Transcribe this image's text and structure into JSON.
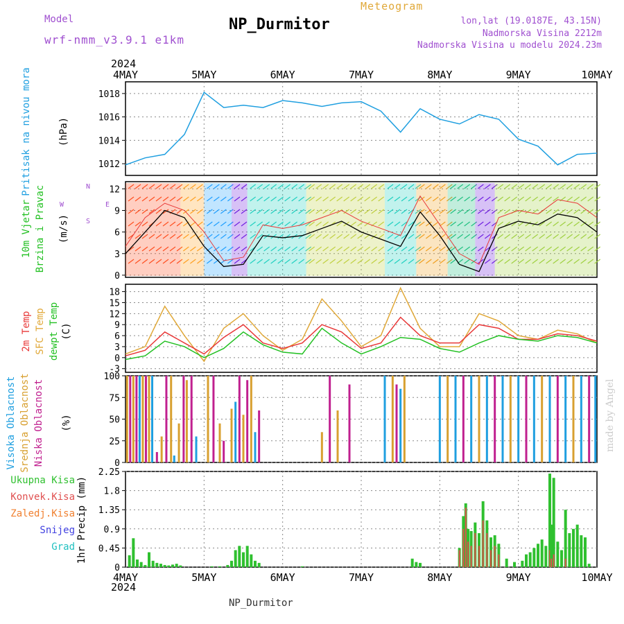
{
  "header": {
    "model_label": "Model",
    "model_name": "wrf-nmm_v3.9.1 e1km",
    "title": "NP_Durmitor",
    "product": "Meteogram",
    "location": "lon,lat (19.0187E, 43.15N)",
    "elevation": "Nadmorska Visina 2212m",
    "model_elevation": "Nadmorska Visina u modelu 2024.23m",
    "footer": "NP_Durmitor",
    "credit": "made by Angel",
    "year": "2024"
  },
  "colors": {
    "pressure": "#1f9fe0",
    "speed": "#000000",
    "gust": "#e83838",
    "temp2m": "#e83838",
    "sfc": "#e0a838",
    "dewpt": "#22c022",
    "cloud_high": "#1f9fe0",
    "cloud_mid": "#d8a030",
    "cloud_low": "#c0208f",
    "rain_total": "#2fc02f",
    "rain_conv": "#e05050",
    "rain_frozen": "#f08030",
    "snow": "#4040e0",
    "graupel": "#20c0c0",
    "grid": "#888888",
    "label_purple": "#a050d0",
    "label_gold": "#e0a838"
  },
  "chart_data": [
    {
      "type": "line",
      "id": "pressure",
      "ylabel": [
        "Pritisak na nivou mora",
        "(hPa)"
      ],
      "x_ticks": [
        "4MAY",
        "5MAY",
        "6MAY",
        "7MAY",
        "8MAY",
        "9MAY",
        "10MAY"
      ],
      "ylim": [
        1011,
        1019
      ],
      "yticks": [
        1012,
        1014,
        1016,
        1018
      ],
      "x": [
        0,
        0.25,
        0.5,
        0.75,
        1,
        1.25,
        1.5,
        1.75,
        2,
        2.25,
        2.5,
        2.75,
        3,
        3.25,
        3.5,
        3.75,
        4,
        4.25,
        4.5,
        4.75,
        5,
        5.25,
        5.5,
        5.75,
        6
      ],
      "values": [
        1011.9,
        1012.5,
        1012.8,
        1014.5,
        1018.1,
        1016.8,
        1017.0,
        1016.8,
        1017.4,
        1017.2,
        1016.9,
        1017.2,
        1017.3,
        1016.5,
        1014.7,
        1016.7,
        1015.8,
        1015.4,
        1016.2,
        1015.8,
        1014.1,
        1013.5,
        1011.9,
        1012.8,
        1012.9
      ]
    },
    {
      "type": "line",
      "id": "wind",
      "ylabel": [
        "10m Vjetar",
        "Brzina i Pravac",
        "(m/s)"
      ],
      "compass": [
        "N",
        "W",
        "E",
        "S"
      ],
      "ylim": [
        -0.3,
        13
      ],
      "yticks": [
        0,
        3,
        6,
        9,
        12
      ],
      "x": [
        0,
        0.25,
        0.5,
        0.75,
        1,
        1.25,
        1.5,
        1.75,
        2,
        2.25,
        2.5,
        2.75,
        3,
        3.25,
        3.5,
        3.75,
        4,
        4.25,
        4.5,
        4.75,
        5,
        5.25,
        5.5,
        5.75,
        6
      ],
      "series": [
        {
          "values": [
            3,
            6,
            9,
            8,
            4,
            1.2,
            1.5,
            5.5,
            5.2,
            5.5,
            6.5,
            7.5,
            6,
            5,
            4,
            8.8,
            5.5,
            1.5,
            0.5,
            6.5,
            7.5,
            7,
            8.5,
            8,
            6
          ]
        },
        {
          "values": [
            4,
            8,
            10,
            9,
            6,
            2,
            2.5,
            7,
            6.5,
            7,
            8,
            9,
            7.5,
            6.5,
            5.5,
            11,
            7,
            3,
            1.5,
            8,
            9,
            8.5,
            10.5,
            10,
            8
          ]
        }
      ],
      "barb_band": [
        [
          0,
          0.7,
          "#ff5020"
        ],
        [
          0.7,
          1,
          "#ffa020"
        ],
        [
          1,
          1.35,
          "#20a0ff"
        ],
        [
          1.35,
          1.55,
          "#7020e0"
        ],
        [
          1.55,
          2.3,
          "#20d0c0"
        ],
        [
          2.3,
          3.3,
          "#c0d040"
        ],
        [
          3.3,
          3.7,
          "#20d0c0"
        ],
        [
          3.7,
          4.1,
          "#f0a020"
        ],
        [
          4.1,
          4.45,
          "#20c080"
        ],
        [
          4.45,
          4.7,
          "#7020e0"
        ],
        [
          4.7,
          6,
          "#a0d040"
        ]
      ]
    },
    {
      "type": "line",
      "id": "temperature",
      "ylabel": [
        "2m Temp",
        "SFC Temp",
        "dewpt Temp",
        "(C)"
      ],
      "ylim": [
        -4,
        20
      ],
      "yticks": [
        -3,
        0,
        3,
        6,
        9,
        12,
        15,
        18
      ],
      "x": [
        0,
        0.25,
        0.5,
        0.75,
        1,
        1.25,
        1.5,
        1.75,
        2,
        2.25,
        2.5,
        2.75,
        3,
        3.25,
        3.5,
        3.75,
        4,
        4.25,
        4.5,
        4.75,
        5,
        5.25,
        5.5,
        5.75,
        6
      ],
      "series": [
        {
          "name": "2m Temp",
          "values": [
            0.5,
            2,
            7,
            4,
            1,
            5.5,
            9,
            4,
            2.5,
            4,
            9,
            7,
            2.5,
            4,
            11,
            6,
            4,
            4,
            9,
            8,
            5,
            5,
            6.5,
            6,
            4.5
          ]
        },
        {
          "name": "SFC Temp",
          "values": [
            1,
            3,
            14,
            6,
            -1,
            8,
            12,
            6,
            2,
            5,
            16,
            10,
            3,
            6,
            19,
            8,
            3,
            3,
            12,
            10,
            6,
            5,
            7.5,
            6.5,
            4
          ]
        },
        {
          "name": "dewpt Temp",
          "values": [
            -0.5,
            0.5,
            4.5,
            3,
            0,
            2.5,
            7,
            3.5,
            1.5,
            1,
            8,
            4,
            1,
            3,
            5.5,
            5,
            2.5,
            1.5,
            4,
            6,
            5,
            4.5,
            6,
            5.5,
            4
          ]
        }
      ]
    },
    {
      "type": "bar",
      "id": "cloud",
      "ylabel": [
        "Visoka Oblacnost",
        "Srednja Oblacnost",
        "Niska Oblacnost",
        "(%)"
      ],
      "ylim": [
        0,
        100
      ],
      "yticks": [
        0,
        25,
        50,
        75,
        100
      ],
      "x": [
        0.02,
        0.06,
        0.1,
        0.14,
        0.18,
        0.22,
        0.26,
        0.3,
        0.34,
        0.4,
        0.46,
        0.52,
        0.58,
        0.62,
        0.68,
        0.74,
        0.78,
        0.84,
        0.9,
        1.05,
        1.12,
        1.2,
        1.25,
        1.35,
        1.4,
        1.45,
        1.5,
        1.55,
        1.6,
        1.65,
        1.7,
        2.5,
        2.6,
        2.7,
        2.85,
        3.3,
        3.4,
        3.45,
        3.5,
        3.55,
        4.0,
        4.1,
        4.2,
        4.3,
        4.4,
        4.5,
        4.6,
        4.7,
        4.8,
        4.9,
        5.0,
        5.1,
        5.2,
        5.3,
        5.4,
        5.5,
        5.6,
        5.7,
        5.8,
        5.9,
        5.98
      ],
      "values": [
        100,
        100,
        100,
        100,
        100,
        100,
        100,
        100,
        100,
        12,
        30,
        100,
        100,
        8,
        45,
        100,
        95,
        100,
        30,
        100,
        100,
        45,
        25,
        62,
        70,
        100,
        55,
        95,
        100,
        35,
        60,
        35,
        100,
        60,
        90,
        100,
        100,
        90,
        85,
        100,
        100,
        100,
        100,
        100,
        100,
        100,
        100,
        100,
        100,
        100,
        100,
        100,
        100,
        100,
        100,
        100,
        100,
        100,
        100,
        100,
        100
      ],
      "bar_type": [
        "mid",
        "low",
        "mid",
        "low",
        "high",
        "mid",
        "low",
        "mid",
        "high",
        "low",
        "mid",
        "low",
        "mid",
        "high",
        "mid",
        "low",
        "mid",
        "low",
        "high",
        "mid",
        "low",
        "mid",
        "low",
        "mid",
        "high",
        "low",
        "mid",
        "low",
        "mid",
        "high",
        "low",
        "mid",
        "low",
        "mid",
        "low",
        "high",
        "mid",
        "low",
        "high",
        "mid",
        "high",
        "mid",
        "high",
        "low",
        "high",
        "mid",
        "high",
        "low",
        "high",
        "mid",
        "high",
        "low",
        "high",
        "mid",
        "high",
        "low",
        "high",
        "mid",
        "high",
        "low",
        "high"
      ]
    },
    {
      "type": "bar",
      "id": "precip",
      "ylabel": [
        "1hr Precip (mm)"
      ],
      "legend": [
        "Ukupna Kisa",
        "Konvek.Kisa",
        "Zaledj.Kisa",
        "Snijeg",
        "Grad"
      ],
      "ylim": [
        0,
        2.25
      ],
      "yticks": [
        0,
        0.45,
        0.9,
        1.35,
        1.8,
        2.25
      ],
      "x": [
        0.05,
        0.1,
        0.15,
        0.2,
        0.25,
        0.3,
        0.35,
        0.4,
        0.45,
        0.5,
        0.55,
        0.6,
        0.65,
        0.7,
        1.1,
        1.2,
        1.3,
        1.35,
        1.4,
        1.45,
        1.5,
        1.55,
        1.6,
        1.65,
        1.7,
        2.25,
        3.65,
        3.7,
        3.75,
        4.25,
        4.3,
        4.33,
        4.36,
        4.4,
        4.45,
        4.5,
        4.55,
        4.6,
        4.65,
        4.7,
        4.75,
        4.85,
        4.95,
        5.05,
        5.1,
        5.15,
        5.2,
        5.25,
        5.3,
        5.35,
        5.4,
        5.42,
        5.45,
        5.5,
        5.55,
        5.6,
        5.65,
        5.7,
        5.75,
        5.8,
        5.85,
        5.9
      ],
      "values": [
        0.28,
        0.68,
        0.18,
        0.12,
        0.05,
        0.35,
        0.15,
        0.1,
        0.08,
        0.05,
        0.04,
        0.06,
        0.08,
        0.04,
        0.02,
        0.02,
        0.05,
        0.15,
        0.4,
        0.5,
        0.35,
        0.5,
        0.3,
        0.15,
        0.1,
        0.02,
        0.2,
        0.12,
        0.1,
        0.45,
        1.2,
        1.5,
        0.9,
        0.85,
        1.05,
        0.8,
        1.55,
        1.1,
        0.7,
        0.75,
        0.55,
        0.2,
        0.12,
        0.15,
        0.3,
        0.35,
        0.45,
        0.55,
        0.65,
        0.5,
        2.2,
        1.0,
        2.1,
        0.6,
        0.4,
        1.35,
        0.8,
        0.9,
        1.0,
        0.75,
        0.7,
        0.08
      ],
      "conv": [
        0,
        0,
        0,
        0,
        0,
        0,
        0,
        0,
        0,
        0,
        0,
        0,
        0,
        0,
        0,
        0,
        0,
        0,
        0,
        0,
        0,
        0,
        0,
        0,
        0,
        0,
        0,
        0,
        0,
        0.4,
        0.9,
        1.4,
        0.6,
        0.5,
        0.8,
        0.5,
        1.1,
        0.8,
        0.4,
        0.5,
        0.3,
        0,
        0,
        0,
        0,
        0,
        0,
        0,
        0,
        0,
        0.4,
        0.2,
        0.3,
        0,
        0,
        0.2,
        0,
        0,
        0,
        0,
        0,
        0
      ]
    }
  ]
}
